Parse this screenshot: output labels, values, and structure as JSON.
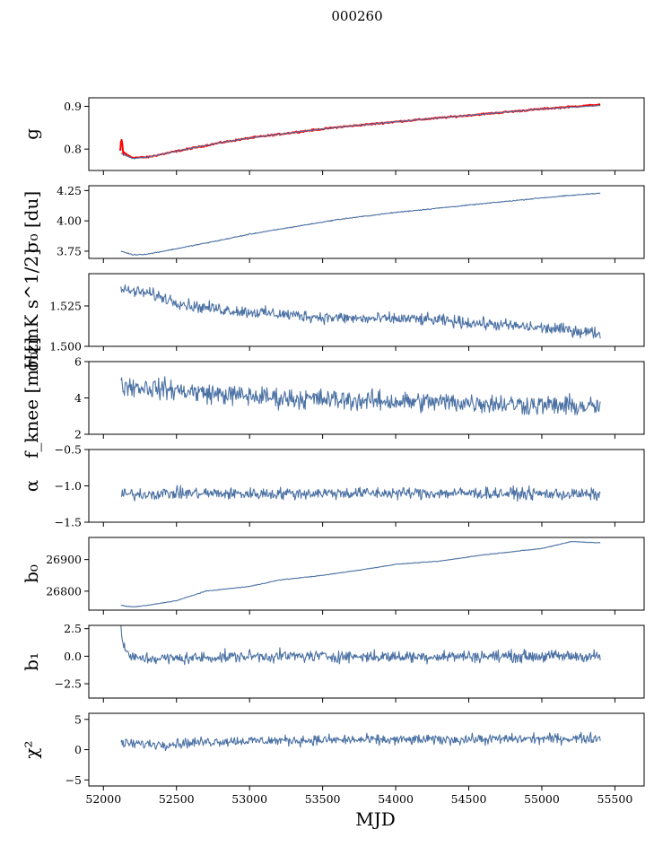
{
  "figure": {
    "title": "000260"
  },
  "chart_data": [
    {
      "id": "g",
      "type": "line",
      "ylabel": "g",
      "ylim": [
        0.75,
        0.92
      ],
      "yticks": [
        0.8,
        0.9
      ],
      "ytick_labels": [
        "0.8",
        "0.9"
      ],
      "xlim": [
        51900,
        55700
      ],
      "series": [
        {
          "color": "#ff0000",
          "points": [
            [
              52115,
              0.795
            ],
            [
              52125,
              0.82
            ],
            [
              52135,
              0.79
            ],
            [
              52200,
              0.78
            ],
            [
              52300,
              0.781
            ],
            [
              52500,
              0.795
            ],
            [
              52800,
              0.815
            ],
            [
              53000,
              0.826
            ],
            [
              53300,
              0.839
            ],
            [
              53600,
              0.851
            ],
            [
              54000,
              0.864
            ],
            [
              54500,
              0.879
            ],
            [
              55000,
              0.894
            ],
            [
              55400,
              0.904
            ]
          ]
        },
        {
          "color": "#4c72a4",
          "points": [
            [
              52120,
              0.79
            ],
            [
              52200,
              0.778
            ],
            [
              52300,
              0.781
            ],
            [
              52500,
              0.795
            ],
            [
              52800,
              0.815
            ],
            [
              53000,
              0.826
            ],
            [
              53300,
              0.839
            ],
            [
              53600,
              0.851
            ],
            [
              54000,
              0.864
            ],
            [
              54500,
              0.879
            ],
            [
              55000,
              0.894
            ],
            [
              55400,
              0.902
            ]
          ]
        }
      ]
    },
    {
      "id": "sigma0_du",
      "type": "line",
      "ylabel": "σ₀ [du]",
      "ylim": [
        3.69,
        4.29
      ],
      "yticks": [
        3.75,
        4.0,
        4.25
      ],
      "ytick_labels": [
        "3.75",
        "4.00",
        "4.25"
      ],
      "xlim": [
        51900,
        55700
      ],
      "series": [
        {
          "color": "#4c72a4",
          "points": [
            [
              52120,
              3.75
            ],
            [
              52200,
              3.72
            ],
            [
              52300,
              3.725
            ],
            [
              52500,
              3.77
            ],
            [
              52800,
              3.84
            ],
            [
              53000,
              3.89
            ],
            [
              53300,
              3.95
            ],
            [
              53600,
              4.01
            ],
            [
              54000,
              4.07
            ],
            [
              54500,
              4.13
            ],
            [
              55000,
              4.19
            ],
            [
              55400,
              4.23
            ]
          ]
        }
      ]
    },
    {
      "id": "sigma0_mk",
      "type": "line",
      "ylabel": "σ₀[mK s^1/2]",
      "ylim": [
        1.5,
        1.545
      ],
      "yticks": [
        1.5,
        1.525
      ],
      "ytick_labels": [
        "1.500",
        "1.525"
      ],
      "xlim": [
        51900,
        55700
      ],
      "series": [
        {
          "color": "#4c72a4",
          "points": [
            [
              52120,
              1.535
            ],
            [
              52300,
              1.533
            ],
            [
              52600,
              1.525
            ],
            [
              52900,
              1.522
            ],
            [
              53200,
              1.52
            ],
            [
              53500,
              1.518
            ],
            [
              53800,
              1.517
            ],
            [
              54100,
              1.517
            ],
            [
              54300,
              1.516
            ],
            [
              54600,
              1.514
            ],
            [
              54900,
              1.512
            ],
            [
              55200,
              1.51
            ],
            [
              55400,
              1.508
            ]
          ]
        }
      ]
    },
    {
      "id": "fknee",
      "type": "line",
      "ylabel": "f_knee [mHz]",
      "ylim": [
        2,
        6
      ],
      "yticks": [
        2,
        4,
        6
      ],
      "ytick_labels": [
        "2",
        "4",
        "6"
      ],
      "xlim": [
        51900,
        55700
      ],
      "series": [
        {
          "color": "#4c72a4",
          "points": [
            [
              52120,
              4.7
            ],
            [
              52400,
              4.5
            ],
            [
              52800,
              4.2
            ],
            [
              53200,
              4.0
            ],
            [
              53600,
              3.9
            ],
            [
              54000,
              3.8
            ],
            [
              54500,
              3.75
            ],
            [
              55000,
              3.6
            ],
            [
              55400,
              3.5
            ]
          ]
        }
      ]
    },
    {
      "id": "alpha",
      "type": "line",
      "ylabel": "α",
      "ylim": [
        -1.5,
        -0.5
      ],
      "yticks": [
        -1.5,
        -1.0,
        -0.5
      ],
      "ytick_labels": [
        "−1.5",
        "−1.0",
        "−0.5"
      ],
      "xlim": [
        51900,
        55700
      ],
      "series": [
        {
          "color": "#4c72a4",
          "points": [
            [
              52120,
              -1.12
            ],
            [
              52500,
              -1.1
            ],
            [
              53000,
              -1.11
            ],
            [
              53500,
              -1.1
            ],
            [
              54000,
              -1.1
            ],
            [
              54500,
              -1.1
            ],
            [
              55000,
              -1.11
            ],
            [
              55400,
              -1.12
            ]
          ]
        }
      ]
    },
    {
      "id": "b0",
      "type": "line",
      "ylabel": "b₀",
      "ylim": [
        26740,
        26970
      ],
      "yticks": [
        26800,
        26900
      ],
      "ytick_labels": [
        "26800",
        "26900"
      ],
      "xlim": [
        51900,
        55700
      ],
      "series": [
        {
          "color": "#4c72a4",
          "points": [
            [
              52120,
              26755
            ],
            [
              52200,
              26750
            ],
            [
              52300,
              26755
            ],
            [
              52500,
              26770
            ],
            [
              52700,
              26800
            ],
            [
              53000,
              26815
            ],
            [
              53200,
              26835
            ],
            [
              53500,
              26850
            ],
            [
              53800,
              26870
            ],
            [
              54000,
              26885
            ],
            [
              54300,
              26895
            ],
            [
              54600,
              26915
            ],
            [
              55000,
              26935
            ],
            [
              55200,
              26957
            ],
            [
              55400,
              26953
            ]
          ]
        }
      ]
    },
    {
      "id": "b1",
      "type": "line",
      "ylabel": "b₁",
      "ylim": [
        -3.8,
        2.8
      ],
      "yticks": [
        -2.5,
        0.0,
        2.5
      ],
      "ytick_labels": [
        "−2.5",
        "0.0",
        "2.5"
      ],
      "xlim": [
        51900,
        55700
      ],
      "series": [
        {
          "color": "#4c72a4",
          "points": [
            [
              52120,
              2.3
            ],
            [
              52150,
              0.5
            ],
            [
              52200,
              -0.2
            ],
            [
              52500,
              -0.2
            ],
            [
              53000,
              0.0
            ],
            [
              53500,
              0.0
            ],
            [
              54000,
              -0.05
            ],
            [
              54500,
              0.0
            ],
            [
              55000,
              0.0
            ],
            [
              55400,
              0.0
            ]
          ]
        }
      ]
    },
    {
      "id": "chi2",
      "type": "line",
      "ylabel": "χ²",
      "ylim": [
        -6,
        6
      ],
      "yticks": [
        -5,
        0,
        5
      ],
      "ytick_labels": [
        "−5",
        "0",
        "5"
      ],
      "xlim": [
        51900,
        55700
      ],
      "xlabel": "MJD",
      "xticks": [
        52000,
        52500,
        53000,
        53500,
        54000,
        54500,
        55000,
        55500
      ],
      "xtick_labels": [
        "52000",
        "52500",
        "53000",
        "53500",
        "54000",
        "54500",
        "55000",
        "55500"
      ],
      "series": [
        {
          "color": "#4c72a4",
          "points": [
            [
              52120,
              1.0
            ],
            [
              52400,
              0.9
            ],
            [
              52800,
              1.4
            ],
            [
              53200,
              1.5
            ],
            [
              53600,
              1.6
            ],
            [
              54000,
              1.6
            ],
            [
              54500,
              1.7
            ],
            [
              55000,
              1.8
            ],
            [
              55400,
              1.9
            ]
          ]
        }
      ]
    }
  ]
}
